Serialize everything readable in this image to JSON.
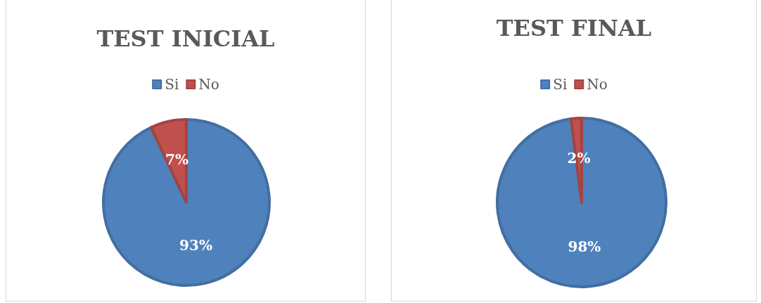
{
  "chart_data": [
    {
      "type": "pie",
      "title": "TEST INICIAL",
      "categories": [
        "Si",
        "No"
      ],
      "values": [
        93,
        7
      ],
      "colors": [
        "#4f81bd",
        "#c0504d"
      ],
      "value_labels": [
        "93%",
        "7%"
      ],
      "legend": "top"
    },
    {
      "type": "pie",
      "title": "TEST FINAL",
      "categories": [
        "Si",
        "No"
      ],
      "values": [
        98,
        2
      ],
      "colors": [
        "#4f81bd",
        "#c0504d"
      ],
      "value_labels": [
        "98%",
        "2%"
      ],
      "legend": "top"
    }
  ]
}
